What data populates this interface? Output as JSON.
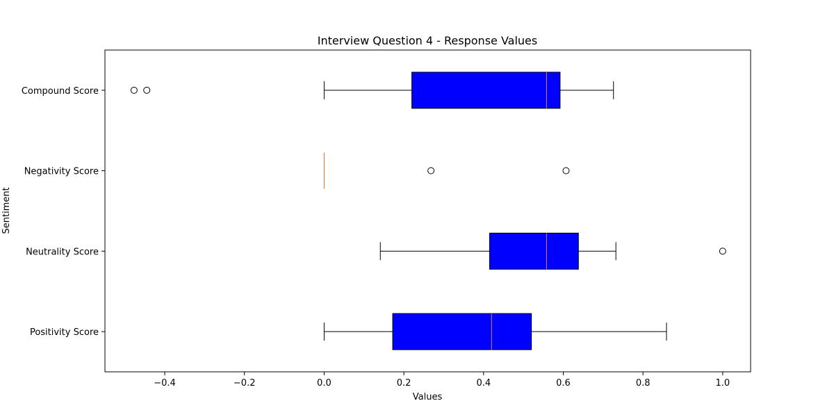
{
  "chart_data": {
    "type": "boxplot",
    "orientation": "horizontal",
    "title": "Interview Question 4 - Response Values",
    "xlabel": "Values",
    "ylabel": "Sentiment",
    "xlim": [
      -0.55,
      1.07
    ],
    "xticks": [
      -0.4,
      -0.2,
      0.0,
      0.2,
      0.4,
      0.6,
      0.8,
      1.0
    ],
    "xtick_labels": [
      "−0.4",
      "−0.2",
      "0.0",
      "0.2",
      "0.4",
      "0.6",
      "0.8",
      "1.0"
    ],
    "grid": false,
    "box_color": "#0000ff",
    "median_color": "#e8803a",
    "categories": [
      "Compound Score",
      "Negativity Score",
      "Neutrality Score",
      "Positivity Score"
    ],
    "series": [
      {
        "name": "Compound Score",
        "whisker_low": 0.0,
        "q1": 0.22,
        "median": 0.558,
        "q3": 0.592,
        "whisker_high": 0.726,
        "outliers": [
          -0.477,
          -0.445
        ]
      },
      {
        "name": "Negativity Score",
        "whisker_low": 0.0,
        "q1": 0.0,
        "median": 0.0,
        "q3": 0.0,
        "whisker_high": 0.0,
        "outliers": [
          0.268,
          0.607
        ]
      },
      {
        "name": "Neutrality Score",
        "whisker_low": 0.141,
        "q1": 0.415,
        "median": 0.558,
        "q3": 0.638,
        "whisker_high": 0.732,
        "outliers": [
          1.0
        ]
      },
      {
        "name": "Positivity Score",
        "whisker_low": 0.0,
        "q1": 0.172,
        "median": 0.42,
        "q3": 0.52,
        "whisker_high": 0.859,
        "outliers": []
      }
    ]
  }
}
